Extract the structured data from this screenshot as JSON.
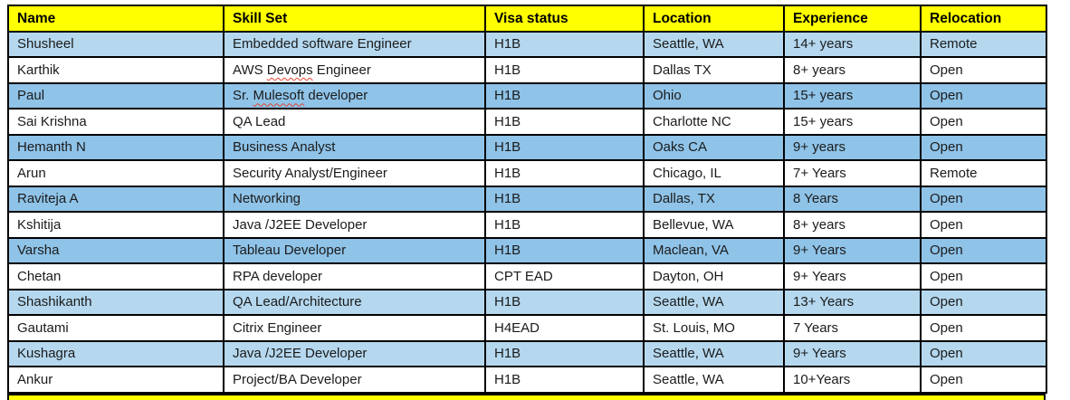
{
  "colors": {
    "header_bg": "#ffff00",
    "row_light": "#b5d8ef",
    "row_dark": "#8fc3e8",
    "border": "#000000",
    "text": "#1b1b1b",
    "muted_text": "#474b4d",
    "squiggle": "#e8432e"
  },
  "table": {
    "columns": [
      {
        "key": "name",
        "label": "Name"
      },
      {
        "key": "skill-set",
        "label": "Skill Set"
      },
      {
        "key": "visa-status",
        "label": "Visa status"
      },
      {
        "key": "location",
        "label": "Location"
      },
      {
        "key": "experience",
        "label": "Experience"
      },
      {
        "key": "relocation",
        "label": "Relocation"
      }
    ],
    "rows": [
      {
        "shade": "light",
        "cells": [
          {
            "text": "Shusheel"
          },
          {
            "text": "Embedded software Engineer"
          },
          {
            "text": "H1B"
          },
          {
            "text": "Seattle, WA"
          },
          {
            "text": "14+ years"
          },
          {
            "text": "Remote"
          }
        ]
      },
      {
        "shade": "white",
        "cells": [
          {
            "text": "Karthik"
          },
          {
            "segments": [
              {
                "text": "AWS "
              },
              {
                "text": "Devops",
                "misspelled": true
              },
              {
                "text": " Engineer"
              }
            ]
          },
          {
            "text": "H1B"
          },
          {
            "text": "Dallas TX"
          },
          {
            "text": "8+ years"
          },
          {
            "text": "Open"
          }
        ]
      },
      {
        "shade": "dark",
        "cells": [
          {
            "text": "Paul"
          },
          {
            "segments": [
              {
                "text": "Sr. "
              },
              {
                "text": "Mulesoft",
                "misspelled": true
              },
              {
                "text": " developer"
              }
            ]
          },
          {
            "text": "H1B"
          },
          {
            "text": "Ohio"
          },
          {
            "text": "15+ years"
          },
          {
            "text": "Open"
          }
        ]
      },
      {
        "shade": "white",
        "cells": [
          {
            "text": "Sai Krishna"
          },
          {
            "text": "QA Lead"
          },
          {
            "text": "H1B"
          },
          {
            "text": "Charlotte NC"
          },
          {
            "text": "15+ years"
          },
          {
            "text": "Open"
          }
        ]
      },
      {
        "shade": "dark",
        "cells": [
          {
            "text": "Hemanth N"
          },
          {
            "text": "Business Analyst"
          },
          {
            "text": "H1B"
          },
          {
            "text": "Oaks CA",
            "muted": true
          },
          {
            "text": "9+ years"
          },
          {
            "text": "Open"
          }
        ]
      },
      {
        "shade": "white",
        "cells": [
          {
            "text": "Arun"
          },
          {
            "text": "Security Analyst/Engineer"
          },
          {
            "text": "H1B"
          },
          {
            "text": "Chicago, IL",
            "muted": true
          },
          {
            "text": "7+ Years"
          },
          {
            "text": "Remote"
          }
        ]
      },
      {
        "shade": "dark",
        "cells": [
          {
            "text": "Raviteja A"
          },
          {
            "text": "Networking"
          },
          {
            "text": "H1B"
          },
          {
            "text": "Dallas, TX",
            "muted": true
          },
          {
            "text": "8 Years"
          },
          {
            "text": "Open"
          }
        ]
      },
      {
        "shade": "white",
        "cells": [
          {
            "text": "Kshitija"
          },
          {
            "text": "Java /J2EE Developer"
          },
          {
            "text": "H1B"
          },
          {
            "text": "Bellevue, WA"
          },
          {
            "text": "8+ years"
          },
          {
            "text": "Open"
          }
        ]
      },
      {
        "shade": "dark",
        "cells": [
          {
            "text": "Varsha"
          },
          {
            "text": "Tableau Developer"
          },
          {
            "text": "H1B"
          },
          {
            "text": "Maclean, VA"
          },
          {
            "text": "9+ Years"
          },
          {
            "text": "Open"
          }
        ]
      },
      {
        "shade": "white",
        "cells": [
          {
            "text": "Chetan"
          },
          {
            "text": "RPA developer"
          },
          {
            "text": "CPT EAD"
          },
          {
            "text": "Dayton, OH"
          },
          {
            "text": "9+ Years"
          },
          {
            "text": "Open"
          }
        ]
      },
      {
        "shade": "light",
        "cells": [
          {
            "text": "Shashikanth"
          },
          {
            "text": "QA Lead/Architecture"
          },
          {
            "text": "H1B"
          },
          {
            "text": "Seattle, WA"
          },
          {
            "text": "13+ Years"
          },
          {
            "text": "Open"
          }
        ]
      },
      {
        "shade": "white",
        "cells": [
          {
            "text": "Gautami"
          },
          {
            "text": "Citrix Engineer"
          },
          {
            "text": "H4EAD"
          },
          {
            "text": "St. Louis, MO"
          },
          {
            "text": "7 Years"
          },
          {
            "text": "Open"
          }
        ]
      },
      {
        "shade": "light",
        "cells": [
          {
            "text": "Kushagra"
          },
          {
            "text": "Java /J2EE Developer"
          },
          {
            "text": "H1B"
          },
          {
            "text": "Seattle, WA"
          },
          {
            "text": "9+ Years"
          },
          {
            "text": "Open"
          }
        ]
      },
      {
        "shade": "white",
        "cells": [
          {
            "text": "Ankur"
          },
          {
            "text": "Project/BA Developer"
          },
          {
            "text": "H1B"
          },
          {
            "text": "Seattle, WA",
            "muted": true
          },
          {
            "text": "10+Years"
          },
          {
            "text": "Open"
          }
        ]
      }
    ]
  },
  "partial_next_row": {
    "description": "top sliver of next table header row, cut off at bottom edge"
  }
}
